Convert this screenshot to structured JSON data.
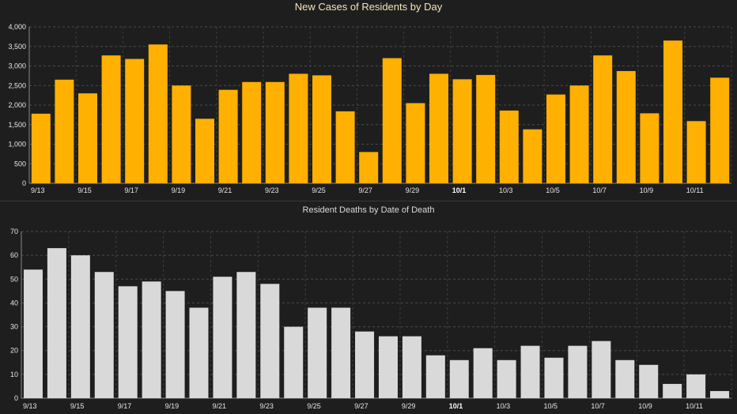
{
  "chart_data": [
    {
      "type": "bar",
      "title": "New Cases of Residents by Day",
      "bar_color": "#ffb000",
      "ylim": [
        0,
        4000
      ],
      "yticks": [
        0,
        500,
        1000,
        1500,
        2000,
        2500,
        3000,
        3500,
        4000
      ],
      "ytick_labels": [
        "0",
        "500",
        "1,000",
        "1,500",
        "2,000",
        "2,500",
        "3,000",
        "3,500",
        "4,000"
      ],
      "categories": [
        "9/13",
        "9/14",
        "9/15",
        "9/16",
        "9/17",
        "9/18",
        "9/19",
        "9/20",
        "9/21",
        "9/22",
        "9/23",
        "9/24",
        "9/25",
        "9/26",
        "9/27",
        "9/28",
        "9/29",
        "9/30",
        "10/1",
        "10/2",
        "10/3",
        "10/4",
        "10/5",
        "10/6",
        "10/7",
        "10/8",
        "10/9",
        "10/10",
        "10/11",
        "10/12"
      ],
      "xtick_labels": [
        "9/13",
        "9/15",
        "9/17",
        "9/19",
        "9/21",
        "9/23",
        "9/25",
        "9/27",
        "9/29",
        "10/1",
        "10/3",
        "10/5",
        "10/7",
        "10/9",
        "10/11"
      ],
      "bold_label": "10/1",
      "values": [
        1780,
        2650,
        2300,
        3270,
        3180,
        3550,
        2500,
        1650,
        2390,
        2590,
        2590,
        2800,
        2760,
        1840,
        800,
        3200,
        2050,
        2800,
        2660,
        2770,
        1860,
        1380,
        2270,
        2500,
        3270,
        2870,
        1790,
        3650,
        1590,
        2700
      ],
      "grid": true
    },
    {
      "type": "bar",
      "title": "Resident Deaths by Date of Death",
      "bar_color": "#d9d9d9",
      "ylim": [
        0,
        70
      ],
      "yticks": [
        0,
        10,
        20,
        30,
        40,
        50,
        60,
        70
      ],
      "ytick_labels": [
        "0",
        "10",
        "20",
        "30",
        "40",
        "50",
        "60",
        "70"
      ],
      "categories": [
        "9/13",
        "9/14",
        "9/15",
        "9/16",
        "9/17",
        "9/18",
        "9/19",
        "9/20",
        "9/21",
        "9/22",
        "9/23",
        "9/24",
        "9/25",
        "9/26",
        "9/27",
        "9/28",
        "9/29",
        "9/30",
        "10/1",
        "10/2",
        "10/3",
        "10/4",
        "10/5",
        "10/6",
        "10/7",
        "10/8",
        "10/9",
        "10/10",
        "10/11",
        "10/12"
      ],
      "xtick_labels": [
        "9/13",
        "9/15",
        "9/17",
        "9/19",
        "9/21",
        "9/23",
        "9/25",
        "9/27",
        "9/29",
        "10/1",
        "10/3",
        "10/5",
        "10/7",
        "10/9",
        "10/11"
      ],
      "bold_label": "10/1",
      "values": [
        54,
        63,
        60,
        53,
        47,
        49,
        45,
        38,
        51,
        53,
        48,
        30,
        38,
        38,
        28,
        26,
        26,
        18,
        16,
        21,
        16,
        22,
        17,
        22,
        24,
        16,
        14,
        6,
        10,
        3
      ],
      "grid": true
    }
  ]
}
